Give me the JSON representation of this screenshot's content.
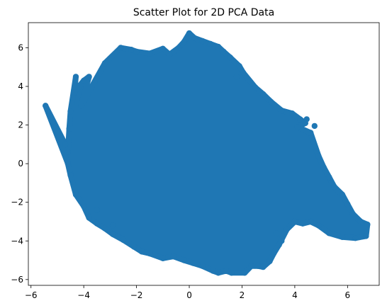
{
  "chart_data": {
    "type": "scatter",
    "title": "Scatter Plot for 2D PCA Data",
    "xlabel": "",
    "ylabel": "",
    "xlim": [
      -6.1,
      7.2
    ],
    "ylim": [
      -6.3,
      7.3
    ],
    "xticks": [
      -6,
      -4,
      -2,
      0,
      2,
      4,
      6
    ],
    "yticks": [
      -6,
      -4,
      -2,
      0,
      2,
      4,
      6
    ],
    "grid": false,
    "legend": "none",
    "marker_color": "#1f77b4",
    "series": [
      {
        "points": [
          [
            -5.45,
            3.0
          ],
          [
            -4.7,
            1.0
          ],
          [
            -4.6,
            0.6
          ],
          [
            -4.55,
            1.8
          ],
          [
            -4.5,
            2.7
          ],
          [
            -4.3,
            4.5
          ],
          [
            -4.35,
            3.7
          ],
          [
            -4.0,
            4.3
          ],
          [
            -3.8,
            4.5
          ],
          [
            -4.1,
            3.0
          ],
          [
            -3.2,
            5.2
          ],
          [
            -2.6,
            6.0
          ],
          [
            -2.2,
            5.9
          ],
          [
            -2.0,
            5.8
          ],
          [
            -1.5,
            5.7
          ],
          [
            -1.0,
            5.95
          ],
          [
            -0.75,
            5.65
          ],
          [
            -0.4,
            6.0
          ],
          [
            -0.2,
            6.3
          ],
          [
            0.0,
            6.75
          ],
          [
            0.2,
            6.5
          ],
          [
            0.5,
            6.35
          ],
          [
            0.8,
            6.2
          ],
          [
            1.1,
            6.05
          ],
          [
            1.3,
            5.8
          ],
          [
            1.55,
            5.5
          ],
          [
            1.9,
            5.05
          ],
          [
            2.05,
            4.7
          ],
          [
            2.5,
            3.95
          ],
          [
            2.8,
            3.6
          ],
          [
            3.1,
            3.2
          ],
          [
            3.5,
            2.75
          ],
          [
            3.9,
            2.6
          ],
          [
            4.2,
            2.3
          ],
          [
            4.4,
            2.1
          ],
          [
            4.1,
            1.9
          ],
          [
            4.6,
            1.6
          ],
          [
            4.9,
            0.4
          ],
          [
            5.1,
            -0.2
          ],
          [
            5.3,
            -0.7
          ],
          [
            5.5,
            -1.2
          ],
          [
            5.8,
            -1.6
          ],
          [
            6.0,
            -2.1
          ],
          [
            6.2,
            -2.6
          ],
          [
            6.5,
            -3.0
          ],
          [
            6.75,
            -3.15
          ],
          [
            6.7,
            -3.75
          ],
          [
            6.3,
            -3.85
          ],
          [
            5.8,
            -3.8
          ],
          [
            5.3,
            -3.6
          ],
          [
            4.9,
            -3.2
          ],
          [
            4.6,
            -3.0
          ],
          [
            4.3,
            -3.1
          ],
          [
            4.0,
            -3.0
          ],
          [
            3.7,
            -3.4
          ],
          [
            3.4,
            -4.2
          ],
          [
            3.2,
            -4.65
          ],
          [
            3.05,
            -5.05
          ],
          [
            2.8,
            -5.35
          ],
          [
            2.6,
            -5.3
          ],
          [
            2.35,
            -5.3
          ],
          [
            2.1,
            -5.65
          ],
          [
            1.6,
            -5.65
          ],
          [
            1.4,
            -5.55
          ],
          [
            1.1,
            -5.65
          ],
          [
            0.9,
            -5.55
          ],
          [
            0.5,
            -5.3
          ],
          [
            0.15,
            -5.15
          ],
          [
            -0.2,
            -5.0
          ],
          [
            -0.6,
            -4.8
          ],
          [
            -1.0,
            -4.9
          ],
          [
            -1.5,
            -4.65
          ],
          [
            -1.8,
            -4.55
          ],
          [
            -2.1,
            -4.3
          ],
          [
            -2.5,
            -3.95
          ],
          [
            -2.9,
            -3.65
          ],
          [
            -3.2,
            -3.35
          ],
          [
            -3.5,
            -3.1
          ],
          [
            -3.8,
            -2.8
          ],
          [
            -4.0,
            -2.2
          ],
          [
            -4.3,
            -1.6
          ],
          [
            -4.5,
            -0.6
          ],
          [
            -4.6,
            0.0
          ],
          [
            -2.9,
            -3.2
          ],
          [
            3.3,
            -3.6
          ],
          [
            3.5,
            -4.0
          ],
          [
            4.45,
            2.3
          ],
          [
            4.75,
            1.95
          ],
          [
            -3.5,
            -2.4
          ],
          [
            1.8,
            4.5
          ]
        ]
      }
    ]
  }
}
